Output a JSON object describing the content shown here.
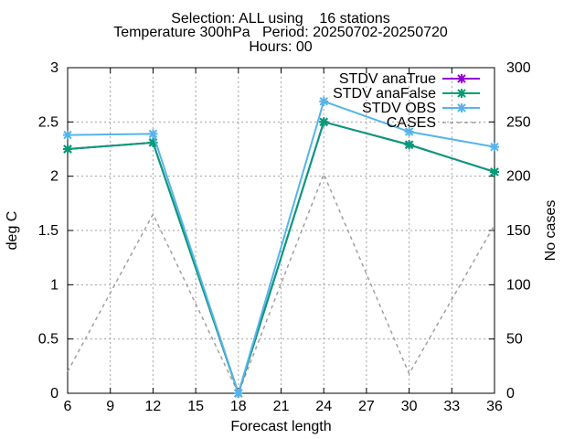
{
  "chart_data": {
    "type": "line",
    "title_lines": [
      "Selection: ALL using    16 stations",
      "Temperature 300hPa   Period: 20250702-20250720",
      "Hours: 00"
    ],
    "xlabel": "Forecast length",
    "ylabel": "deg C",
    "y2label": "No cases",
    "xlim": [
      6,
      36
    ],
    "xticks": [
      6,
      9,
      12,
      15,
      18,
      21,
      24,
      27,
      30,
      33,
      36
    ],
    "ylim": [
      0,
      3
    ],
    "yticks": [
      0,
      0.5,
      1,
      1.5,
      2,
      2.5,
      3
    ],
    "y2lim": [
      0,
      300
    ],
    "y2ticks": [
      0,
      50,
      100,
      150,
      200,
      250,
      300
    ],
    "grid": true,
    "legend_position": "top-right",
    "x": [
      6,
      12,
      18,
      24,
      30,
      36
    ],
    "series": [
      {
        "name": "STDV anaTrue",
        "color": "#9400d3",
        "axis": "y",
        "style": "line-points",
        "values": [
          2.25,
          2.31,
          0,
          2.5,
          2.29,
          2.04
        ]
      },
      {
        "name": "STDV anaFalse",
        "color": "#009e73",
        "axis": "y",
        "style": "line-points",
        "values": [
          2.25,
          2.31,
          0,
          2.5,
          2.29,
          2.04
        ]
      },
      {
        "name": "STDV OBS",
        "color": "#56b4e9",
        "axis": "y",
        "style": "line-points",
        "values": [
          2.38,
          2.39,
          0,
          2.69,
          2.41,
          2.27
        ]
      },
      {
        "name": "CASES",
        "color": "#a0a0a0",
        "axis": "y2",
        "style": "dashed",
        "values": [
          20,
          165,
          0,
          202,
          18,
          155
        ]
      }
    ]
  }
}
